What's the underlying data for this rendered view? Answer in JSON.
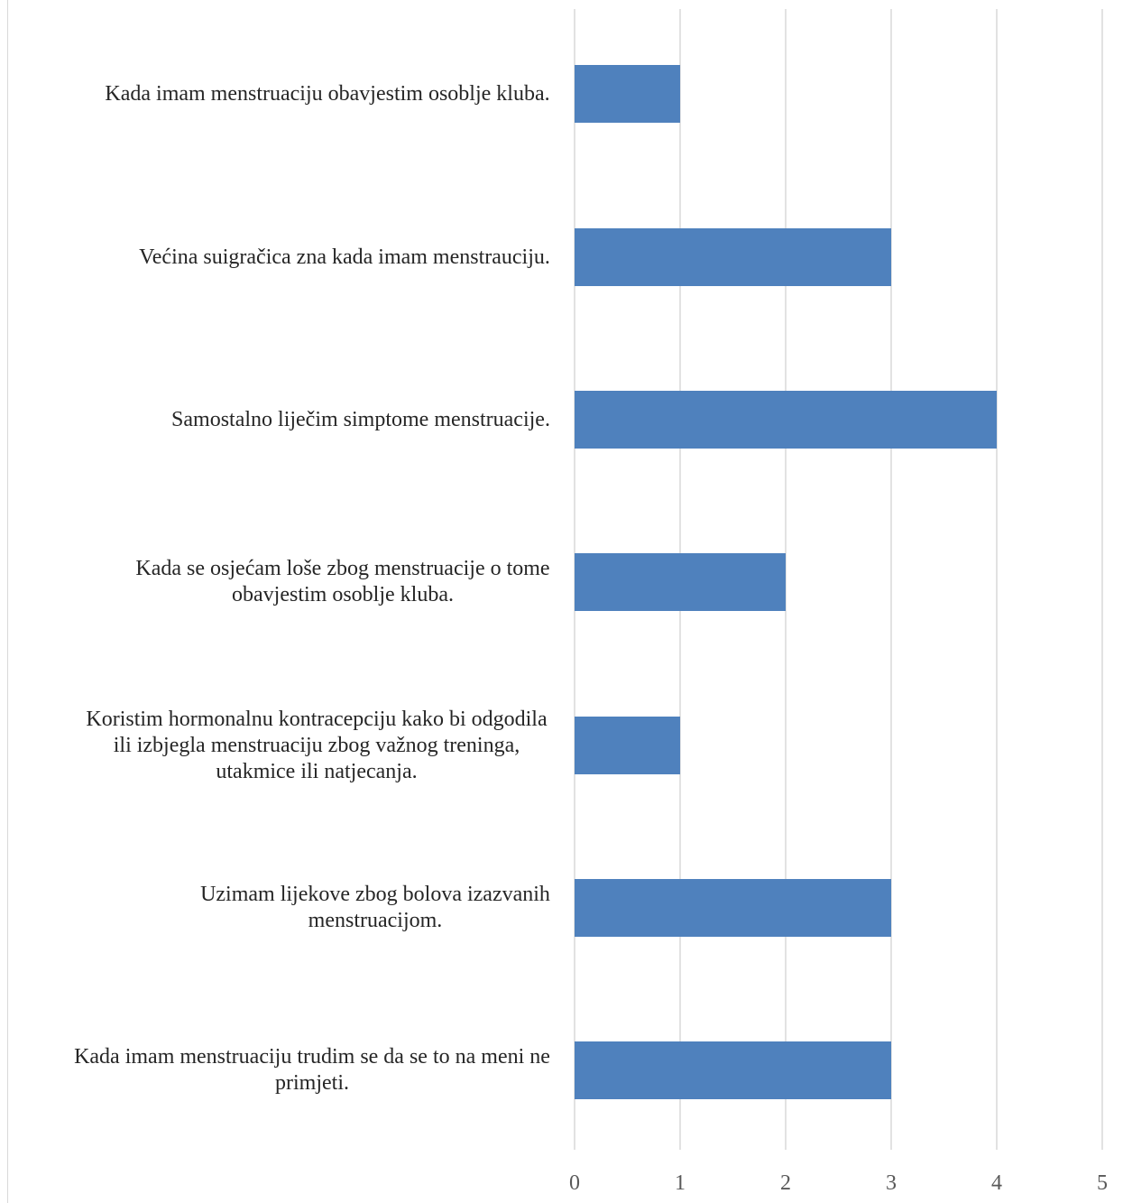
{
  "chart_data": {
    "type": "bar",
    "orientation": "horizontal",
    "categories": [
      "Kada imam menstruaciju obavjestim osoblje kluba.",
      "Većina suigračica zna kada imam menstrauciju.",
      "Samostalno liječim simptome menstruacije.",
      "Kada se osjećam loše zbog menstruacije o tome obavjestim osoblje kluba.",
      "Koristim hormonalnu kontracepciju  kako bi odgodila ili izbjegla menstruaciju zbog važnog treninga, utakmice ili natjecanja.",
      "Uzimam lijekove zbog bolova izazvanih menstruacijom.",
      "Kada imam menstruaciju trudim se da se to na meni ne primjeti."
    ],
    "category_lines": [
      [
        "Kada imam menstruaciju obavjestim osoblje kluba."
      ],
      [
        "Većina suigračica zna kada imam menstrauciju."
      ],
      [
        "Samostalno liječim simptome menstruacije."
      ],
      [
        "Kada se osjećam loše zbog menstruacije o tome",
        "obavjestim osoblje kluba."
      ],
      [
        "Koristim hormonalnu kontracepciju  kako bi odgodila",
        "ili izbjegla menstruaciju zbog važnog treninga,",
        "utakmice ili natjecanja."
      ],
      [
        "Uzimam lijekove zbog bolova izazvanih",
        "menstruacijom."
      ],
      [
        "Kada imam menstruaciju trudim se da se to na meni ne",
        "primjeti."
      ]
    ],
    "values": [
      1,
      3,
      4,
      2,
      1,
      3,
      3
    ],
    "xlim": [
      0,
      5
    ],
    "x_ticks": [
      "0",
      "1",
      "2",
      "3",
      "4",
      "5"
    ],
    "title": "",
    "xlabel": "",
    "ylabel": "",
    "grid": "vertical",
    "legend": "none",
    "bar_color": "#4f81bd",
    "grid_color": "#d9d9d9"
  }
}
